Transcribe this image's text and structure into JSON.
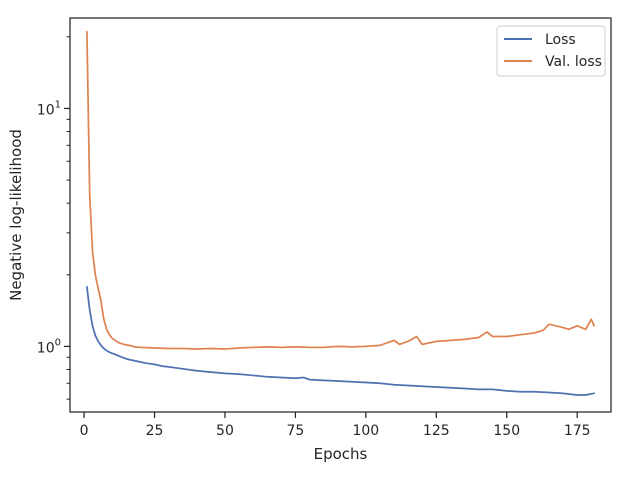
{
  "chart_data": {
    "type": "line",
    "xlabel": "Epochs",
    "ylabel": "Negative log-likelihood",
    "xlim": [
      -5,
      187
    ],
    "ylim": [
      0.53,
      24
    ],
    "yscale": "log",
    "x_ticks": [
      0,
      25,
      50,
      75,
      100,
      125,
      150,
      175
    ],
    "y_major_ticks": [
      1,
      10
    ],
    "y_minor_ticks": [
      0.6,
      0.7,
      0.8,
      0.9,
      2,
      3,
      4,
      5,
      6,
      7,
      8,
      9,
      20
    ],
    "grid": false,
    "legend_position": "top-right",
    "series": [
      {
        "name": "Loss",
        "color": "#4c72b0",
        "points": [
          [
            1,
            1.78
          ],
          [
            2,
            1.42
          ],
          [
            3,
            1.22
          ],
          [
            4,
            1.11
          ],
          [
            5,
            1.05
          ],
          [
            6,
            1.01
          ],
          [
            7,
            0.98
          ],
          [
            8,
            0.96
          ],
          [
            9,
            0.945
          ],
          [
            10,
            0.935
          ],
          [
            12,
            0.915
          ],
          [
            14,
            0.895
          ],
          [
            16,
            0.88
          ],
          [
            18,
            0.87
          ],
          [
            20,
            0.86
          ],
          [
            22,
            0.85
          ],
          [
            25,
            0.84
          ],
          [
            28,
            0.825
          ],
          [
            30,
            0.82
          ],
          [
            35,
            0.805
          ],
          [
            40,
            0.79
          ],
          [
            45,
            0.78
          ],
          [
            50,
            0.77
          ],
          [
            55,
            0.765
          ],
          [
            60,
            0.755
          ],
          [
            65,
            0.745
          ],
          [
            70,
            0.74
          ],
          [
            75,
            0.735
          ],
          [
            78,
            0.74
          ],
          [
            80,
            0.725
          ],
          [
            85,
            0.72
          ],
          [
            90,
            0.715
          ],
          [
            95,
            0.71
          ],
          [
            100,
            0.705
          ],
          [
            105,
            0.7
          ],
          [
            110,
            0.69
          ],
          [
            115,
            0.685
          ],
          [
            120,
            0.68
          ],
          [
            125,
            0.675
          ],
          [
            130,
            0.67
          ],
          [
            135,
            0.665
          ],
          [
            140,
            0.66
          ],
          [
            145,
            0.66
          ],
          [
            150,
            0.65
          ],
          [
            155,
            0.645
          ],
          [
            160,
            0.645
          ],
          [
            165,
            0.64
          ],
          [
            170,
            0.635
          ],
          [
            175,
            0.625
          ],
          [
            178,
            0.625
          ],
          [
            181,
            0.635
          ]
        ]
      },
      {
        "name": "Val. loss",
        "color": "#dd8452",
        "points": [
          [
            1,
            21.0
          ],
          [
            2,
            4.3
          ],
          [
            3,
            2.5
          ],
          [
            4,
            2.0
          ],
          [
            5,
            1.75
          ],
          [
            6,
            1.55
          ],
          [
            7,
            1.3
          ],
          [
            8,
            1.18
          ],
          [
            9,
            1.12
          ],
          [
            10,
            1.08
          ],
          [
            12,
            1.04
          ],
          [
            14,
            1.02
          ],
          [
            16,
            1.01
          ],
          [
            18,
            0.995
          ],
          [
            20,
            0.99
          ],
          [
            25,
            0.985
          ],
          [
            30,
            0.98
          ],
          [
            35,
            0.98
          ],
          [
            40,
            0.975
          ],
          [
            45,
            0.98
          ],
          [
            50,
            0.975
          ],
          [
            55,
            0.985
          ],
          [
            60,
            0.99
          ],
          [
            65,
            0.995
          ],
          [
            70,
            0.99
          ],
          [
            75,
            0.995
          ],
          [
            80,
            0.99
          ],
          [
            85,
            0.99
          ],
          [
            90,
            1.0
          ],
          [
            95,
            0.995
          ],
          [
            100,
            1.0
          ],
          [
            105,
            1.01
          ],
          [
            110,
            1.06
          ],
          [
            112,
            1.02
          ],
          [
            115,
            1.05
          ],
          [
            118,
            1.1
          ],
          [
            120,
            1.02
          ],
          [
            125,
            1.05
          ],
          [
            130,
            1.06
          ],
          [
            135,
            1.07
          ],
          [
            140,
            1.09
          ],
          [
            143,
            1.15
          ],
          [
            145,
            1.1
          ],
          [
            150,
            1.1
          ],
          [
            155,
            1.12
          ],
          [
            160,
            1.14
          ],
          [
            163,
            1.17
          ],
          [
            165,
            1.24
          ],
          [
            170,
            1.2
          ],
          [
            172,
            1.18
          ],
          [
            175,
            1.22
          ],
          [
            178,
            1.18
          ],
          [
            180,
            1.3
          ],
          [
            181,
            1.22
          ]
        ]
      }
    ]
  }
}
